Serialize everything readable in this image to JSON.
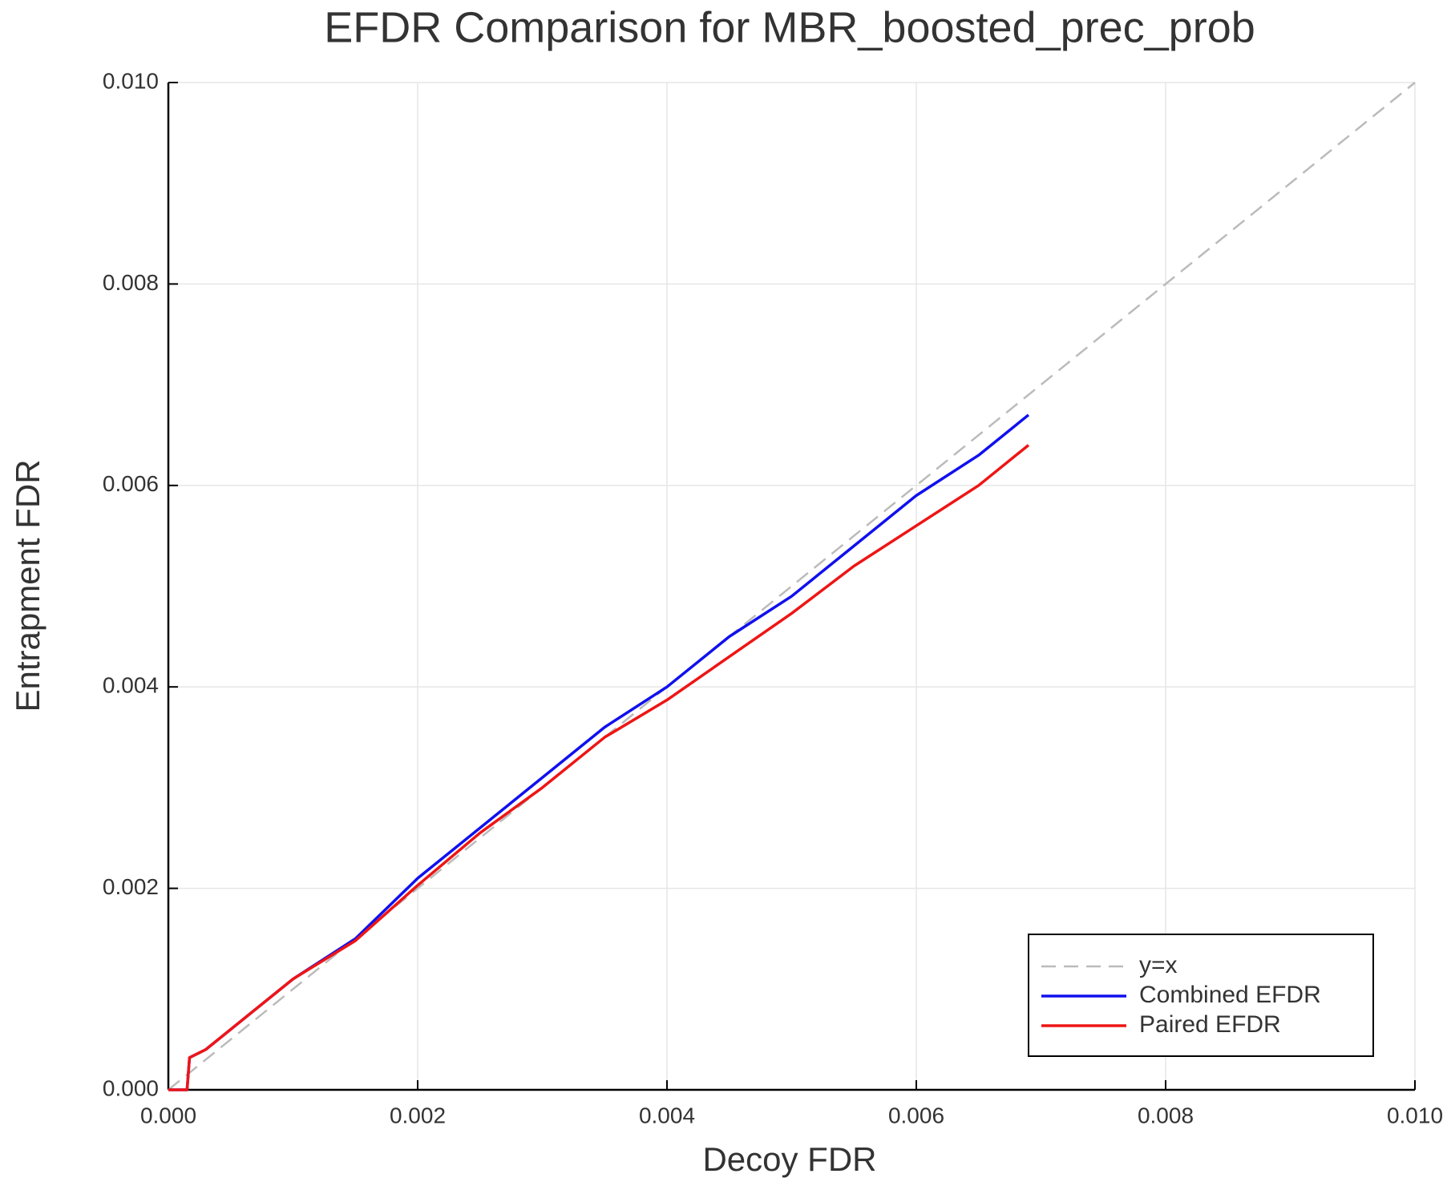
{
  "chart_data": {
    "type": "line",
    "title": "EFDR Comparison for MBR_boosted_prec_prob",
    "x_label": "Decoy FDR",
    "y_label": "Entrapment FDR",
    "xlim": [
      0,
      0.01
    ],
    "ylim": [
      0,
      0.01
    ],
    "xticks": [
      {
        "value": 0,
        "label": "0.000"
      },
      {
        "value": 0.002,
        "label": "0.002"
      },
      {
        "value": 0.004,
        "label": "0.004"
      },
      {
        "value": 0.006,
        "label": "0.006"
      },
      {
        "value": 0.008,
        "label": "0.008"
      },
      {
        "value": 0.01,
        "label": "0.010"
      }
    ],
    "yticks": [
      {
        "value": 0,
        "label": "0.000"
      },
      {
        "value": 0.002,
        "label": "0.002"
      },
      {
        "value": 0.004,
        "label": "0.004"
      },
      {
        "value": 0.006,
        "label": "0.006"
      },
      {
        "value": 0.008,
        "label": "0.008"
      },
      {
        "value": 0.01,
        "label": "0.010"
      }
    ],
    "grid": true,
    "legend": "bottom-right",
    "series": [
      {
        "name": "y=x",
        "color": "#bbbbbb",
        "dashed": true,
        "x": [
          0,
          0.01
        ],
        "values": [
          0,
          0.01
        ]
      },
      {
        "name": "Combined EFDR",
        "color": "#1010ee",
        "dashed": false,
        "x": [
          0,
          0.00015,
          0.00017,
          0.0003,
          0.0005,
          0.001,
          0.0015,
          0.002,
          0.0025,
          0.003,
          0.0035,
          0.004,
          0.0045,
          0.005,
          0.0055,
          0.006,
          0.0065,
          0.0069
        ],
        "values": [
          0,
          0,
          0.00032,
          0.0004,
          0.0006,
          0.0011,
          0.0015,
          0.0021,
          0.0026,
          0.0031,
          0.0036,
          0.004,
          0.0045,
          0.0049,
          0.0054,
          0.0059,
          0.0063,
          0.0067
        ]
      },
      {
        "name": "Paired EFDR",
        "color": "#ee1515",
        "dashed": false,
        "x": [
          0,
          0.00015,
          0.00017,
          0.0003,
          0.0005,
          0.001,
          0.0015,
          0.002,
          0.0025,
          0.003,
          0.0035,
          0.004,
          0.0045,
          0.005,
          0.0055,
          0.006,
          0.0065,
          0.0069
        ],
        "values": [
          0,
          0,
          0.00032,
          0.0004,
          0.0006,
          0.0011,
          0.00148,
          0.00203,
          0.00255,
          0.003,
          0.0035,
          0.00387,
          0.0043,
          0.00473,
          0.0052,
          0.0056,
          0.006,
          0.0064
        ]
      }
    ]
  }
}
